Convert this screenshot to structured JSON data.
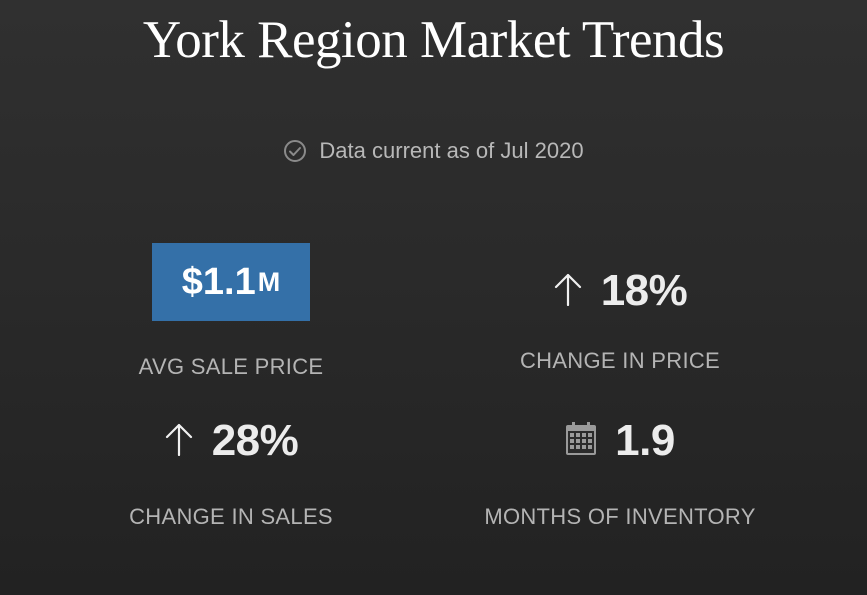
{
  "header": {
    "title": "York Region Market Trends"
  },
  "status": {
    "icon": "check-circle-icon",
    "text": "Data current as of Jul 2020"
  },
  "stats": {
    "avg_sale_price": {
      "value": "$1.1",
      "unit": "M",
      "label": "AVG SALE PRICE",
      "highlight_color": "#3470a8"
    },
    "change_in_price": {
      "icon": "arrow-up-icon",
      "value": "18%",
      "label": "CHANGE IN PRICE"
    },
    "change_in_sales": {
      "icon": "arrow-up-icon",
      "value": "28%",
      "label": "CHANGE IN SALES"
    },
    "months_of_inventory": {
      "icon": "calendar-icon",
      "value": "1.9",
      "label": "MONTHS OF INVENTORY"
    }
  }
}
